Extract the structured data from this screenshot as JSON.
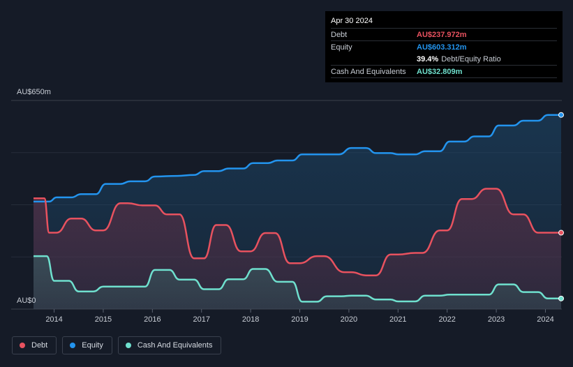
{
  "tooltip": {
    "date": "Apr 30 2024",
    "debt_label": "Debt",
    "debt_value": "AU$237.972m",
    "equity_label": "Equity",
    "equity_value": "AU$603.312m",
    "ratio_value": "39.4%",
    "ratio_label": "Debt/Equity Ratio",
    "cash_label": "Cash And Equivalents",
    "cash_value": "AU$32.809m"
  },
  "legend": {
    "debt": "Debt",
    "equity": "Equity",
    "cash": "Cash And Equivalents"
  },
  "colors": {
    "debt": "#e8525f",
    "equity": "#2394ee",
    "cash": "#6fe0ce",
    "background": "#151b27"
  },
  "chart_data": {
    "type": "area",
    "y_top_label": "AU$650m",
    "y_bottom_label": "AU$0",
    "ylim": [
      0,
      650
    ],
    "xlim": [
      2013.55,
      2024.35
    ],
    "x_ticks": [
      "2014",
      "2015",
      "2016",
      "2017",
      "2018",
      "2019",
      "2020",
      "2021",
      "2022",
      "2023",
      "2024"
    ],
    "grid": true,
    "legend_position": "bottom-left",
    "series": [
      {
        "name": "Debt",
        "x": [
          2013.58,
          2013.8,
          2013.9,
          2014.05,
          2014.35,
          2014.55,
          2014.85,
          2015.0,
          2015.35,
          2015.5,
          2015.8,
          2016.05,
          2016.3,
          2016.55,
          2016.85,
          2017.05,
          2017.3,
          2017.5,
          2017.8,
          2018.0,
          2018.3,
          2018.5,
          2018.8,
          2019.0,
          2019.35,
          2019.5,
          2019.9,
          2020.05,
          2020.35,
          2020.55,
          2020.85,
          2021.0,
          2021.35,
          2021.5,
          2021.85,
          2022.0,
          2022.3,
          2022.5,
          2022.8,
          2023.0,
          2023.35,
          2023.55,
          2023.85,
          2024.05,
          2024.32
        ],
        "values": [
          345,
          345,
          238,
          238,
          282,
          282,
          245,
          245,
          330,
          330,
          323,
          323,
          295,
          295,
          158,
          158,
          262,
          262,
          180,
          180,
          237,
          237,
          143,
          143,
          165,
          165,
          115,
          115,
          105,
          105,
          170,
          170,
          175,
          175,
          245,
          245,
          343,
          343,
          375,
          375,
          295,
          295,
          238,
          238,
          238
        ]
      },
      {
        "name": "Equity",
        "x": [
          2013.58,
          2013.9,
          2014.05,
          2014.35,
          2014.55,
          2014.85,
          2015.05,
          2015.35,
          2015.55,
          2015.85,
          2016.05,
          2016.5,
          2016.85,
          2017.05,
          2017.35,
          2017.55,
          2017.85,
          2018.05,
          2018.35,
          2018.55,
          2018.85,
          2019.05,
          2019.8,
          2020.05,
          2020.35,
          2020.55,
          2020.85,
          2021.0,
          2021.35,
          2021.55,
          2021.85,
          2022.05,
          2022.35,
          2022.55,
          2022.85,
          2023.05,
          2023.35,
          2023.55,
          2023.85,
          2024.05,
          2024.32
        ],
        "values": [
          335,
          335,
          348,
          348,
          358,
          358,
          390,
          390,
          398,
          398,
          413,
          415,
          418,
          430,
          430,
          438,
          438,
          455,
          455,
          463,
          463,
          482,
          482,
          502,
          502,
          486,
          486,
          482,
          482,
          492,
          492,
          522,
          522,
          538,
          538,
          572,
          572,
          587,
          587,
          605,
          605
        ]
      },
      {
        "name": "Cash And Equivalents",
        "x": [
          2013.58,
          2013.85,
          2014.0,
          2014.3,
          2014.5,
          2014.8,
          2015.0,
          2015.3,
          2015.5,
          2015.85,
          2016.05,
          2016.35,
          2016.55,
          2016.85,
          2017.05,
          2017.35,
          2017.55,
          2017.85,
          2018.05,
          2018.3,
          2018.55,
          2018.85,
          2019.05,
          2019.35,
          2019.55,
          2019.85,
          2020.05,
          2020.35,
          2020.55,
          2020.85,
          2021.0,
          2021.35,
          2021.55,
          2021.85,
          2022.05,
          2022.35,
          2022.55,
          2022.85,
          2023.05,
          2023.35,
          2023.55,
          2023.85,
          2024.05,
          2024.32
        ],
        "values": [
          165,
          165,
          88,
          88,
          55,
          55,
          70,
          70,
          70,
          70,
          122,
          122,
          92,
          92,
          62,
          62,
          93,
          93,
          125,
          125,
          85,
          85,
          23,
          23,
          40,
          40,
          42,
          42,
          30,
          30,
          24,
          24,
          42,
          42,
          45,
          45,
          45,
          45,
          77,
          77,
          53,
          53,
          33,
          33
        ]
      }
    ]
  }
}
